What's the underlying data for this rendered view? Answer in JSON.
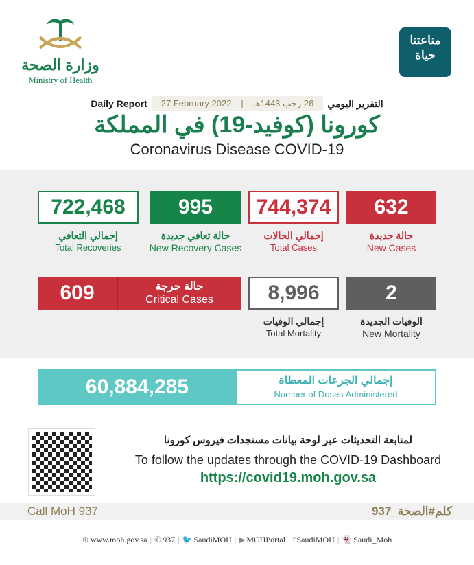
{
  "logos": {
    "moh_ar": "وزارة الصحة",
    "moh_en": "Ministry of Health",
    "life_ar_1": "مناعتنا",
    "life_ar_2": "حياة"
  },
  "header": {
    "daily_report_en": "Daily Report",
    "date_greg": "27 February 2022",
    "date_hijri": "26 رجب 1443هـ",
    "daily_report_ar": "التقرير اليومي"
  },
  "title": {
    "ar": "كورونا (كوفيد-19) في المملكة",
    "en": "Coronavirus Disease COVID-19"
  },
  "stats": {
    "total_recoveries": {
      "value": "722,468",
      "ar": "إجمالي التعافي",
      "en": "Total Recoveries"
    },
    "new_recoveries": {
      "value": "995",
      "ar": "حالة تعافي جديدة",
      "en": "New Recovery Cases"
    },
    "total_cases": {
      "value": "744,374",
      "ar": "إجمالي الحالات",
      "en": "Total Cases"
    },
    "new_cases": {
      "value": "632",
      "ar": "حالة جديدة",
      "en": "New Cases"
    },
    "critical": {
      "value": "609",
      "ar": "حالة حرجة",
      "en": "Critical Cases"
    },
    "total_mortality": {
      "value": "8,996",
      "ar": "إجمالي الوفيات",
      "en": "Total Mortality"
    },
    "new_mortality": {
      "value": "2",
      "ar": "الوفيات الجديدة",
      "en": "New Mortality"
    }
  },
  "doses": {
    "value": "60,884,285",
    "ar": "إجمالي الجرعات المعطاة",
    "en": "Number of Doses Administered"
  },
  "dashboard": {
    "ar": "لمتابعة التحديثات عبر لوحة بيانات مستجدات فيروس كورونا",
    "en": "To follow the updates through the COVID-19 Dashboard",
    "url": "https://covid19.moh.gov.sa"
  },
  "call": {
    "en": "Call MoH 937",
    "ar": "كلم#الصحة_937"
  },
  "footer": [
    {
      "icon": "globe-icon",
      "glyph": "⊕",
      "text": "www.moh.gov.sa"
    },
    {
      "icon": "phone-icon",
      "glyph": "✆",
      "text": "937"
    },
    {
      "icon": "twitter-icon",
      "glyph": "🐦",
      "text": "SaudiMOH"
    },
    {
      "icon": "youtube-icon",
      "glyph": "▶",
      "text": "MOHPortal"
    },
    {
      "icon": "facebook-icon",
      "glyph": "f",
      "text": "SaudiMOH"
    },
    {
      "icon": "snapchat-icon",
      "glyph": "👻",
      "text": "Saudi_Moh"
    }
  ],
  "colors": {
    "green": "#17844a",
    "red": "#c8313b",
    "gray": "#5f5f5f",
    "teal": "#5ec8c4"
  }
}
